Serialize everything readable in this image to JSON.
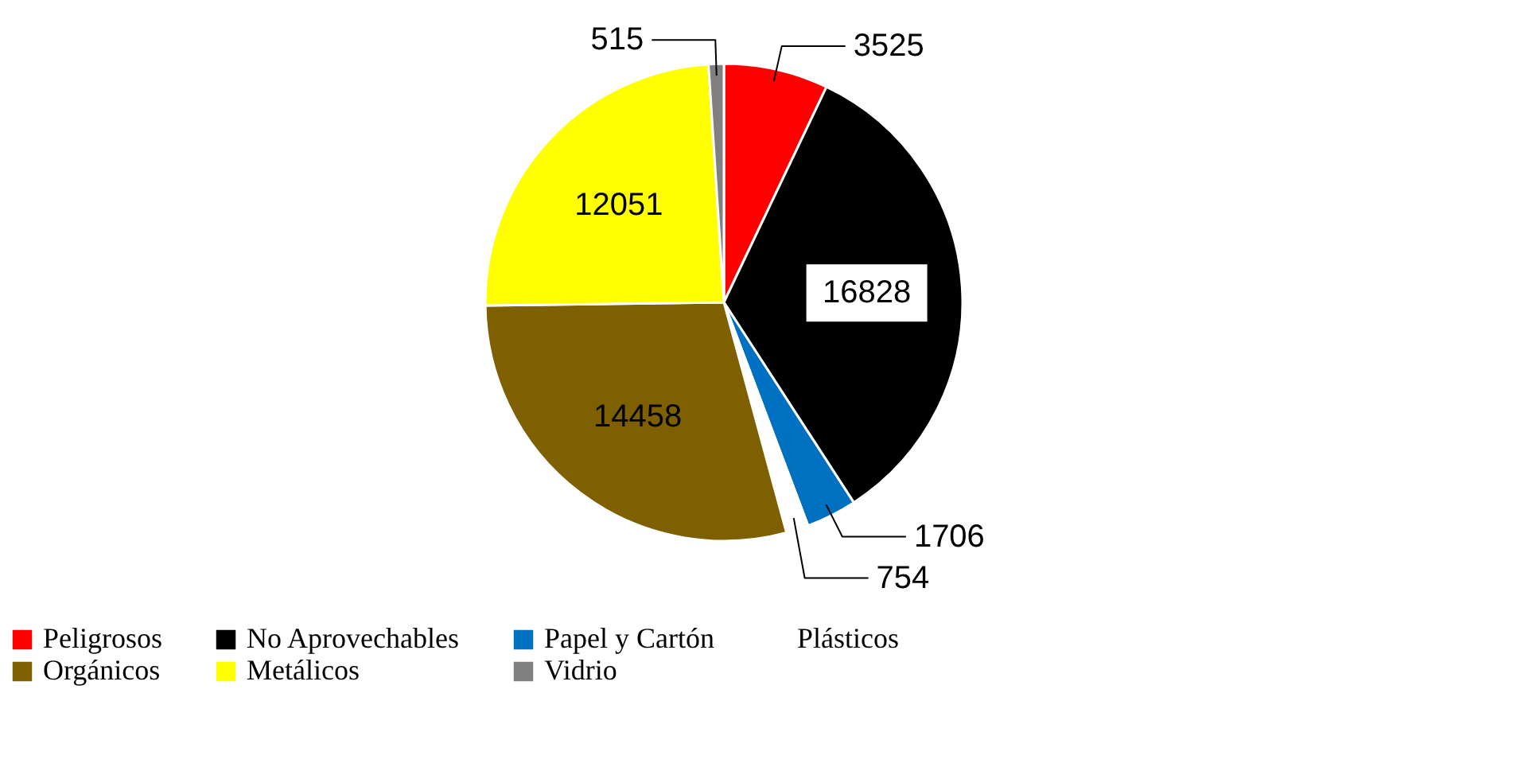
{
  "chart_data": {
    "type": "pie",
    "categories": [
      "Peligrosos",
      "No Aprovechables",
      "Papel y Cartón",
      "Plásticos",
      "Orgánicos",
      "Metálicos",
      "Vidrio"
    ],
    "values": [
      3525,
      16828,
      1706,
      754,
      14458,
      12051,
      515
    ],
    "colors": [
      "#ff0000",
      "#000000",
      "#0070c0",
      "#ffffff",
      "#7f6000",
      "#ffff00",
      "#808080"
    ],
    "data_labels": true,
    "legend": "bottom"
  }
}
